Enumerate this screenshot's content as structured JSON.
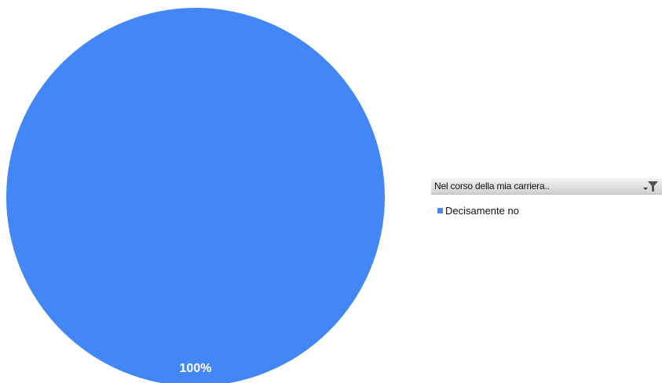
{
  "chart_data": {
    "type": "pie",
    "categories": [
      "Decisamente no"
    ],
    "values": [
      100
    ],
    "data_labels": [
      "100%"
    ],
    "legend_title": "Nel corso della mia  carriera..",
    "legend_position": "right",
    "colors": [
      "#4386f5"
    ]
  },
  "legend": {
    "title": "Nel corso della mia  carriera..",
    "filter_icon": "filter-dropdown-icon",
    "items": [
      {
        "label": "Decisamente no",
        "color": "#4386f5"
      }
    ]
  }
}
